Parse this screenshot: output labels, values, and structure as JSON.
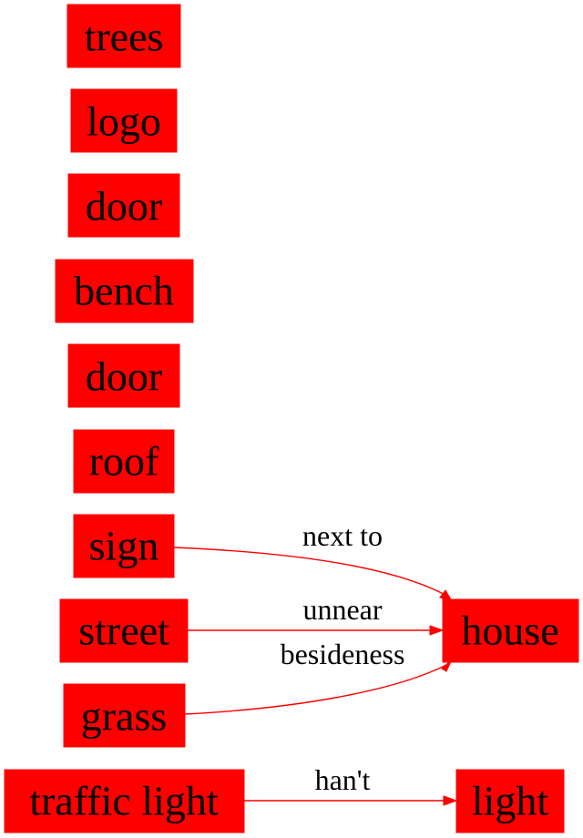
{
  "colors": {
    "node_fill": "#ff0000",
    "edge": "#ff0000",
    "text": "#000000",
    "background": "#ffffff"
  },
  "nodes": {
    "trees": "trees",
    "logo": "logo",
    "door1": "door",
    "bench": "bench",
    "door2": "door",
    "roof": "roof",
    "sign": "sign",
    "street": "street",
    "grass": "grass",
    "traffic_light": "traffic light",
    "house": "house",
    "light": "light"
  },
  "edges": {
    "sign_house": "next to",
    "street_house": "unnear",
    "grass_house": "besideness",
    "traffic_light_light": "han't"
  }
}
